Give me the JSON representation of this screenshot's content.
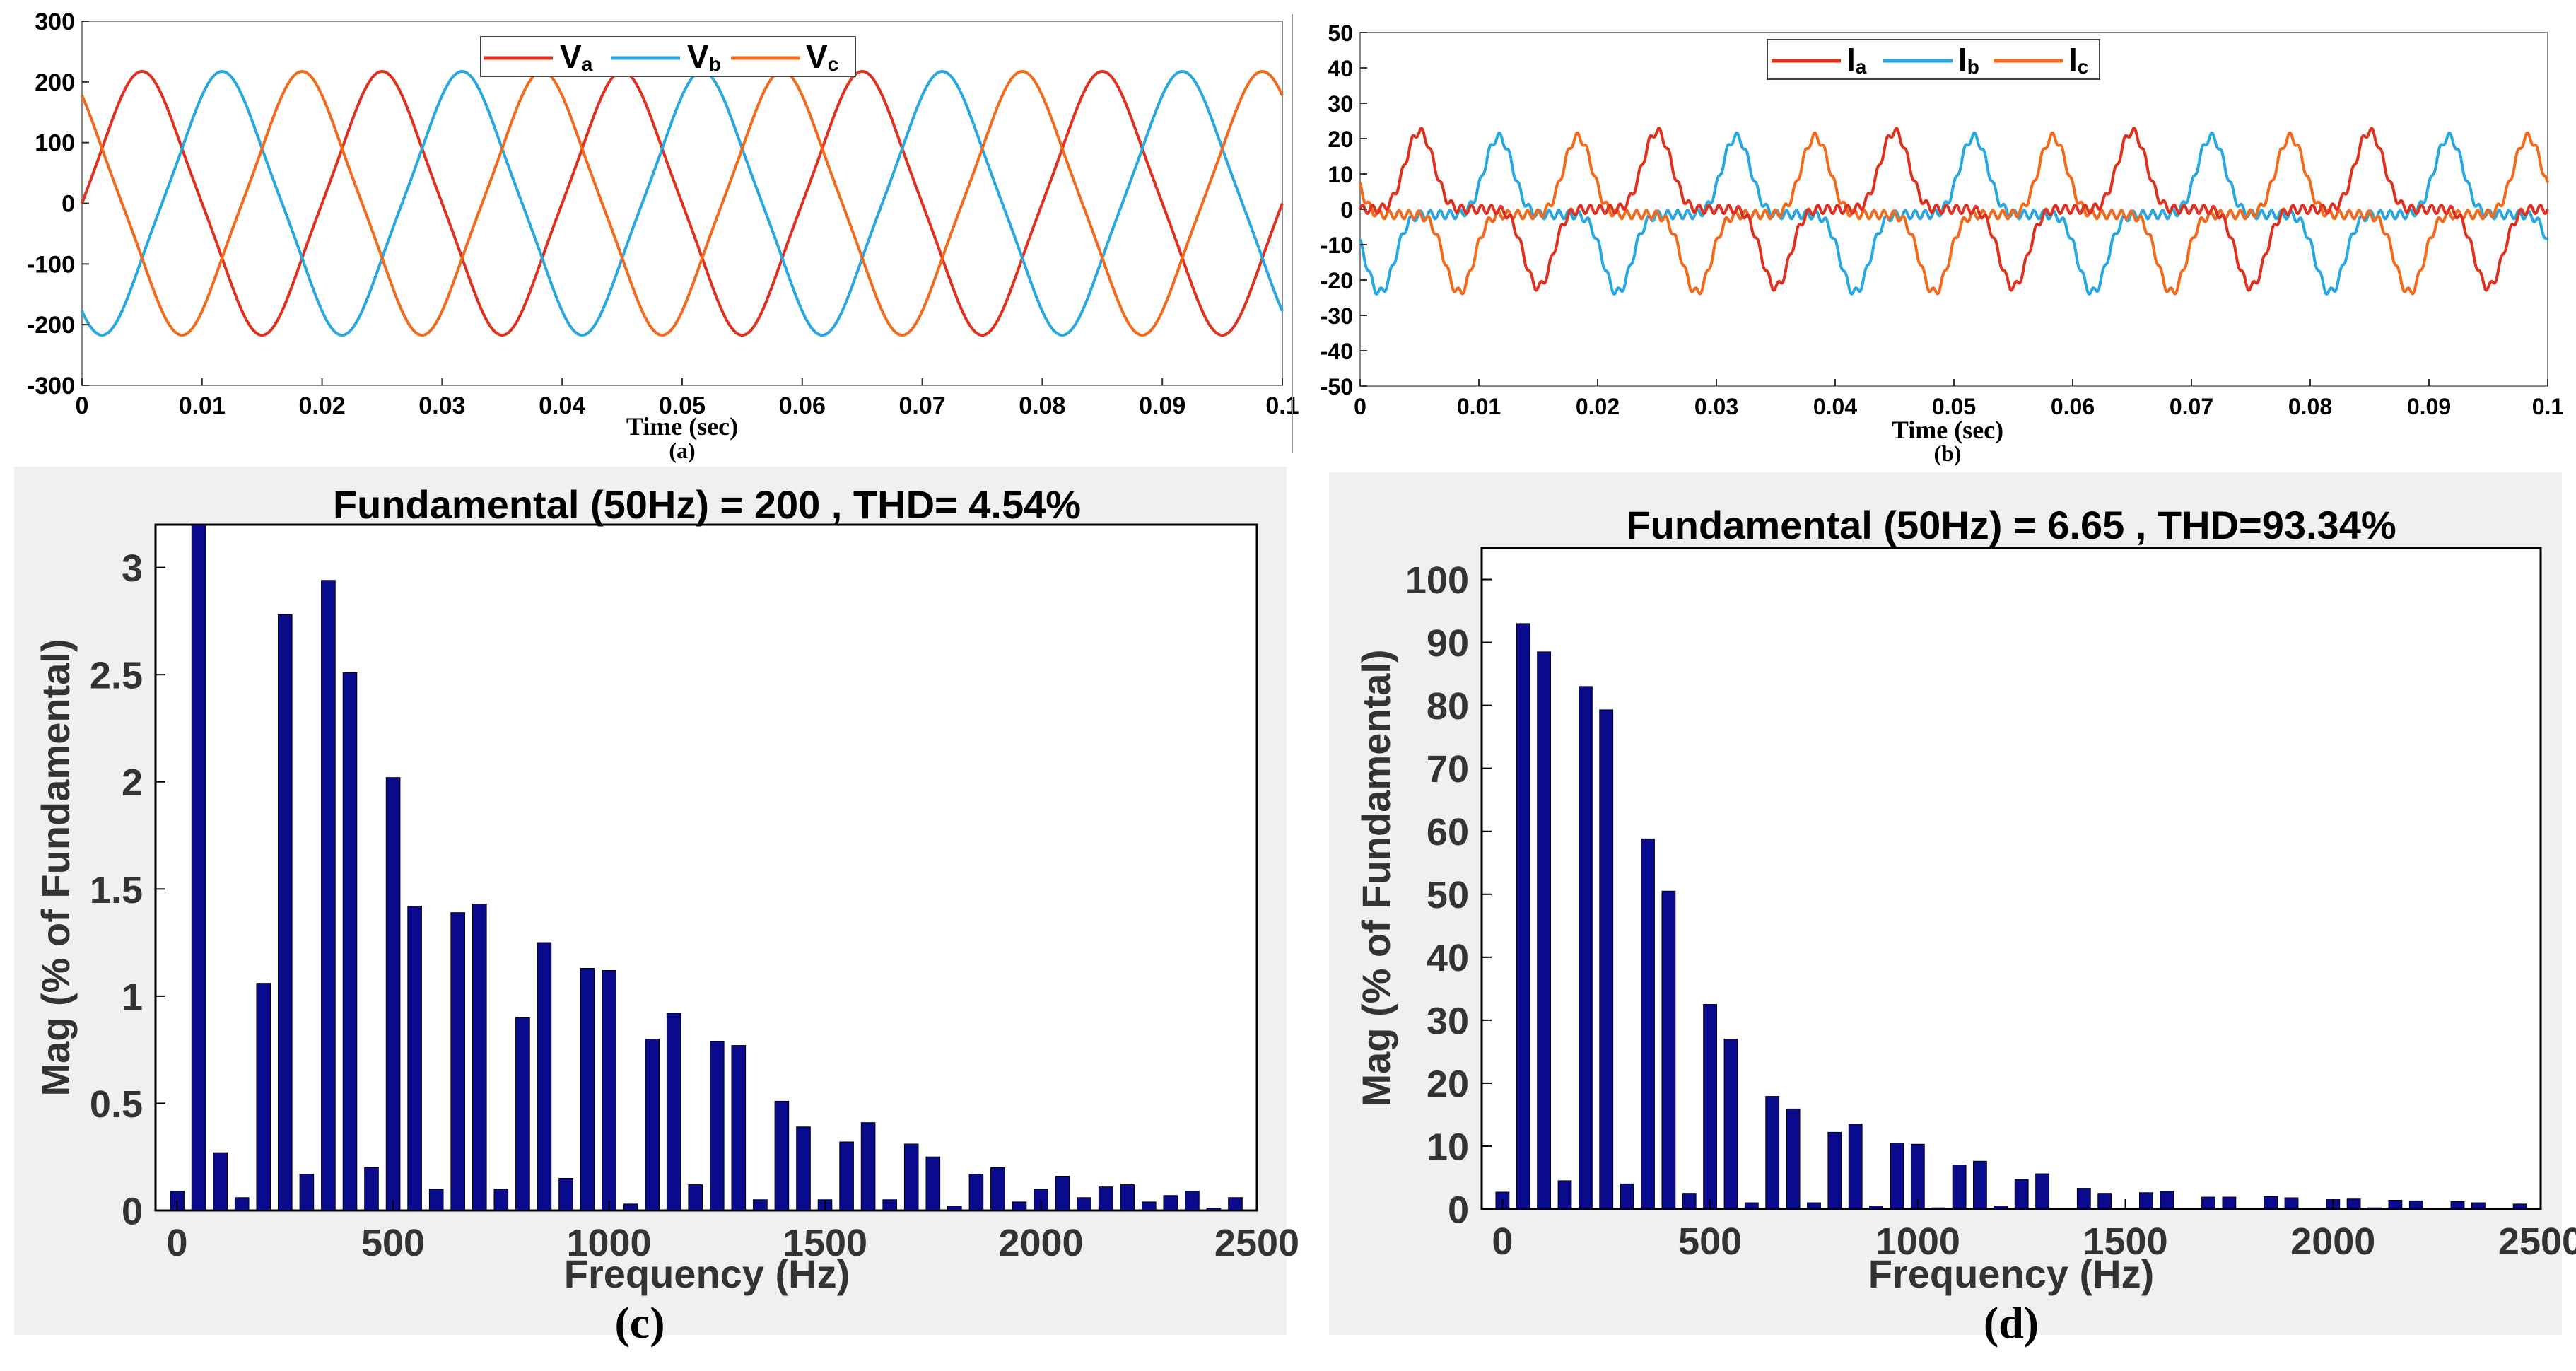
{
  "charts": {
    "a": {
      "xticks": [
        "0",
        "0.01",
        "0.02",
        "0.03",
        "0.04",
        "0.05",
        "0.06",
        "0.07",
        "0.08",
        "0.09",
        "0.1"
      ],
      "yticks": [
        "300",
        "200",
        "100",
        "0",
        "-100",
        "-200",
        "-300"
      ],
      "xlabel": "Time (sec)",
      "caption": "(a)",
      "legend": [
        {
          "name": "Va",
          "base": "V",
          "sub": "a"
        },
        {
          "name": "Vb",
          "base": "V",
          "sub": "b"
        },
        {
          "name": "Vc",
          "base": "V",
          "sub": "c"
        }
      ]
    },
    "b": {
      "xticks": [
        "0",
        "0.01",
        "0.02",
        "0.03",
        "0.04",
        "0.05",
        "0.06",
        "0.07",
        "0.08",
        "0.09",
        "0.1"
      ],
      "yticks": [
        "50",
        "40",
        "30",
        "20",
        "10",
        "0",
        "-10",
        "-20",
        "-30",
        "-40",
        "-50"
      ],
      "xlabel": "Time (sec)",
      "caption": "(b)",
      "legend": [
        {
          "name": "Ia",
          "base": "I",
          "sub": "a"
        },
        {
          "name": "Ib",
          "base": "I",
          "sub": "b"
        },
        {
          "name": "Ic",
          "base": "I",
          "sub": "c"
        }
      ]
    },
    "c": {
      "title": "Fundamental (50Hz) = 200 , THD= 4.54%",
      "xticks": [
        "0",
        "500",
        "1000",
        "1500",
        "2000",
        "2500"
      ],
      "yticks": [
        "0",
        "0.5",
        "1",
        "1.5",
        "2",
        "2.5",
        "3"
      ],
      "xlabel": "Frequency (Hz)",
      "ylabel": "Mag (% of Fundamental)",
      "caption": "(c)"
    },
    "d": {
      "title": "Fundamental (50Hz) = 6.65 , THD=93.34%",
      "xticks": [
        "0",
        "500",
        "1000",
        "1500",
        "2000",
        "2500"
      ],
      "yticks": [
        "0",
        "10",
        "20",
        "30",
        "40",
        "50",
        "60",
        "70",
        "80",
        "90",
        "100"
      ],
      "xlabel": "Frequency (Hz)",
      "ylabel": "Mag (% of Fundamental)",
      "caption": "(d)"
    }
  },
  "colors": {
    "a": "#e0301e",
    "b": "#29a8e0",
    "c": "#f26b1d",
    "bar": "#0a0a8c",
    "panel_bg": "#f0f0f0"
  },
  "chart_data": [
    {
      "type": "line",
      "title": "",
      "xlabel": "Time (sec)",
      "ylabel": "",
      "xlim": [
        0,
        0.1
      ],
      "ylim": [
        -300,
        300
      ],
      "series": [
        {
          "name": "Va",
          "amplitude": 205,
          "frequency_hz": 50,
          "phase_deg": 0
        },
        {
          "name": "Vb",
          "amplitude": 205,
          "frequency_hz": 50,
          "phase_deg": -120
        },
        {
          "name": "Vc",
          "amplitude": 205,
          "frequency_hz": 50,
          "phase_deg": 120
        }
      ]
    },
    {
      "type": "line",
      "title": "",
      "xlabel": "Time (sec)",
      "ylabel": "",
      "xlim": [
        0,
        0.1
      ],
      "ylim": [
        -50,
        50
      ],
      "series": [
        {
          "name": "Ia",
          "peak": 22,
          "frequency_hz": 50,
          "phase_deg": 0
        },
        {
          "name": "Ib",
          "peak": 22,
          "frequency_hz": 50,
          "phase_deg": -120
        },
        {
          "name": "Ic",
          "peak": 22,
          "frequency_hz": 50,
          "phase_deg": 120
        }
      ]
    },
    {
      "type": "bar",
      "title": "Fundamental (50Hz) = 200 , THD= 4.54%",
      "xlabel": "Frequency (Hz)",
      "ylabel": "Mag (% of Fundamental)",
      "xlim": [
        -50,
        2500
      ],
      "ylim": [
        0,
        3.2
      ],
      "x": [
        0,
        50,
        100,
        150,
        200,
        250,
        300,
        350,
        400,
        450,
        500,
        550,
        600,
        650,
        700,
        750,
        800,
        850,
        900,
        950,
        1000,
        1050,
        1100,
        1150,
        1200,
        1250,
        1300,
        1350,
        1400,
        1450,
        1500,
        1550,
        1600,
        1650,
        1700,
        1750,
        1800,
        1850,
        1900,
        1950,
        2000,
        2050,
        2100,
        2150,
        2200,
        2250,
        2300,
        2350,
        2400,
        2450
      ],
      "values": [
        0.09,
        3.2,
        0.27,
        0.06,
        1.06,
        2.78,
        0.17,
        2.94,
        2.51,
        0.2,
        2.02,
        1.42,
        0.1,
        1.39,
        1.43,
        0.1,
        0.9,
        1.25,
        0.15,
        1.13,
        1.12,
        0.03,
        0.8,
        0.92,
        0.12,
        0.79,
        0.77,
        0.05,
        0.51,
        0.39,
        0.05,
        0.32,
        0.41,
        0.05,
        0.31,
        0.25,
        0.02,
        0.17,
        0.2,
        0.04,
        0.1,
        0.16,
        0.06,
        0.11,
        0.12,
        0.04,
        0.07,
        0.09,
        0.01,
        0.06
      ]
    },
    {
      "type": "bar",
      "title": "Fundamental (50Hz) = 6.65 , THD=93.34%",
      "xlabel": "Frequency (Hz)",
      "ylabel": "Mag (% of Fundamental)",
      "xlim": [
        -50,
        2500
      ],
      "ylim": [
        0,
        105
      ],
      "x": [
        0,
        50,
        100,
        150,
        200,
        250,
        300,
        350,
        400,
        450,
        500,
        550,
        600,
        650,
        700,
        750,
        800,
        850,
        900,
        950,
        1000,
        1050,
        1100,
        1150,
        1200,
        1250,
        1300,
        1350,
        1400,
        1450,
        1500,
        1550,
        1600,
        1650,
        1700,
        1750,
        1800,
        1850,
        1900,
        1950,
        2000,
        2050,
        2100,
        2150,
        2200,
        2250,
        2300,
        2350,
        2400,
        2450
      ],
      "values": [
        2.7,
        93,
        88.5,
        4.5,
        83,
        79.3,
        4,
        58.8,
        50.5,
        2.5,
        32.5,
        27,
        1,
        17.9,
        15.9,
        1,
        12.2,
        13.5,
        0.5,
        10.5,
        10.3,
        0.2,
        7,
        7.6,
        0.5,
        4.7,
        5.6,
        0.1,
        3.3,
        2.5,
        0.1,
        2.6,
        2.8,
        0.1,
        1.9,
        1.9,
        0.1,
        2,
        1.8,
        0.1,
        1.5,
        1.6,
        0.2,
        1.4,
        1.3,
        0.1,
        1.2,
        1,
        0.1,
        0.8
      ]
    }
  ]
}
